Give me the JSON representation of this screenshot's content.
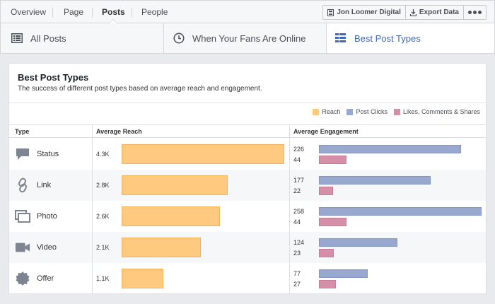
{
  "topnav": {
    "tabs": [
      "Overview",
      "Page",
      "Posts",
      "People"
    ],
    "active_tab": "Posts",
    "account_label": "Jon Loomer Digital",
    "export_label": "Export Data"
  },
  "section_tabs": [
    {
      "label": "All Posts",
      "icon": "table-icon"
    },
    {
      "label": "When Your Fans Are Online",
      "icon": "clock-icon"
    },
    {
      "label": "Best Post Types",
      "icon": "list-icon",
      "active": true
    }
  ],
  "card": {
    "title": "Best Post Types",
    "subtitle": "The success of different post types based on average reach and engagement."
  },
  "legend": [
    {
      "label": "Reach",
      "color": "#ffc97f"
    },
    {
      "label": "Post Clicks",
      "color": "#98a8cf"
    },
    {
      "label": "Likes, Comments & Shares",
      "color": "#d58fa6"
    }
  ],
  "columns": [
    "Type",
    "Average Reach",
    "Average Engagement"
  ],
  "rows": [
    {
      "type": "Status",
      "icon": "status-icon",
      "reach": "4.3K",
      "clicks": "226",
      "likes": "44"
    },
    {
      "type": "Link",
      "icon": "link-icon",
      "reach": "2.8K",
      "clicks": "177",
      "likes": "22"
    },
    {
      "type": "Photo",
      "icon": "photo-icon",
      "reach": "2.6K",
      "clicks": "258",
      "likes": "44"
    },
    {
      "type": "Video",
      "icon": "video-icon",
      "reach": "2.1K",
      "clicks": "124",
      "likes": "23"
    },
    {
      "type": "Offer",
      "icon": "offer-icon",
      "reach": "1.1K",
      "clicks": "77",
      "likes": "27"
    }
  ]
}
